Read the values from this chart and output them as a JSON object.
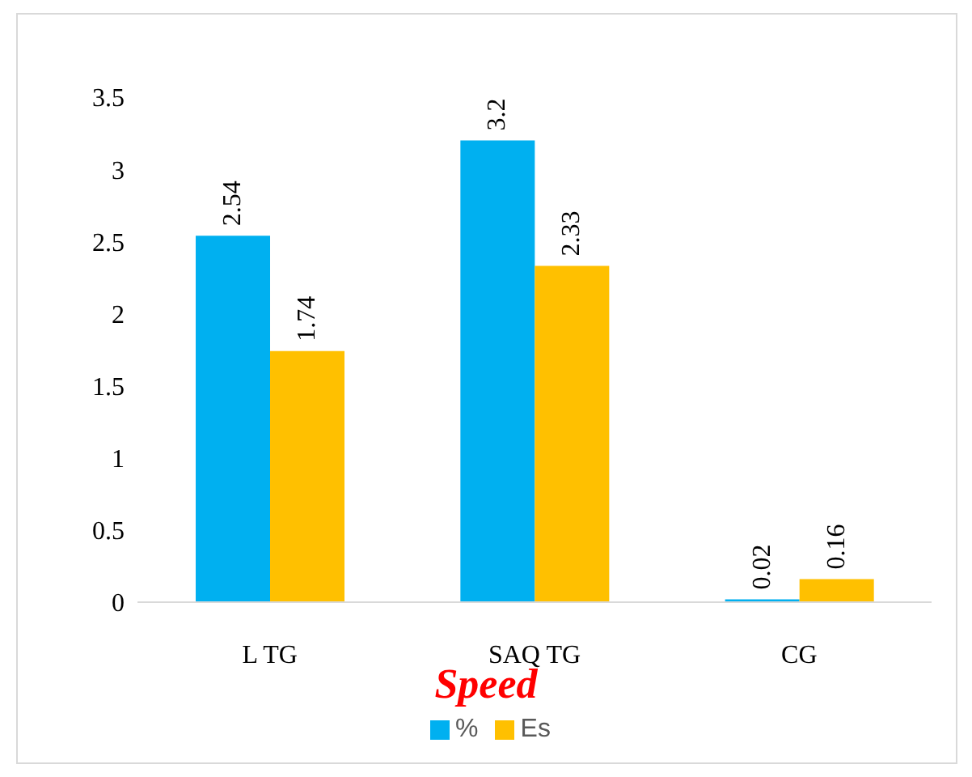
{
  "chart_data": {
    "type": "bar",
    "title": "Speed",
    "categories": [
      "L TG",
      "SAQ TG",
      "CG"
    ],
    "series": [
      {
        "name": "%",
        "color": "#00b0f0",
        "values": [
          2.54,
          3.2,
          0.02
        ]
      },
      {
        "name": "Es",
        "color": "#ffc000",
        "values": [
          1.74,
          2.33,
          0.16
        ]
      }
    ],
    "ylim": [
      0,
      3.5
    ],
    "yticks": [
      0,
      0.5,
      1,
      1.5,
      2,
      2.5,
      3,
      3.5
    ],
    "grid": false,
    "legend": "bottom",
    "data_labels": true
  }
}
